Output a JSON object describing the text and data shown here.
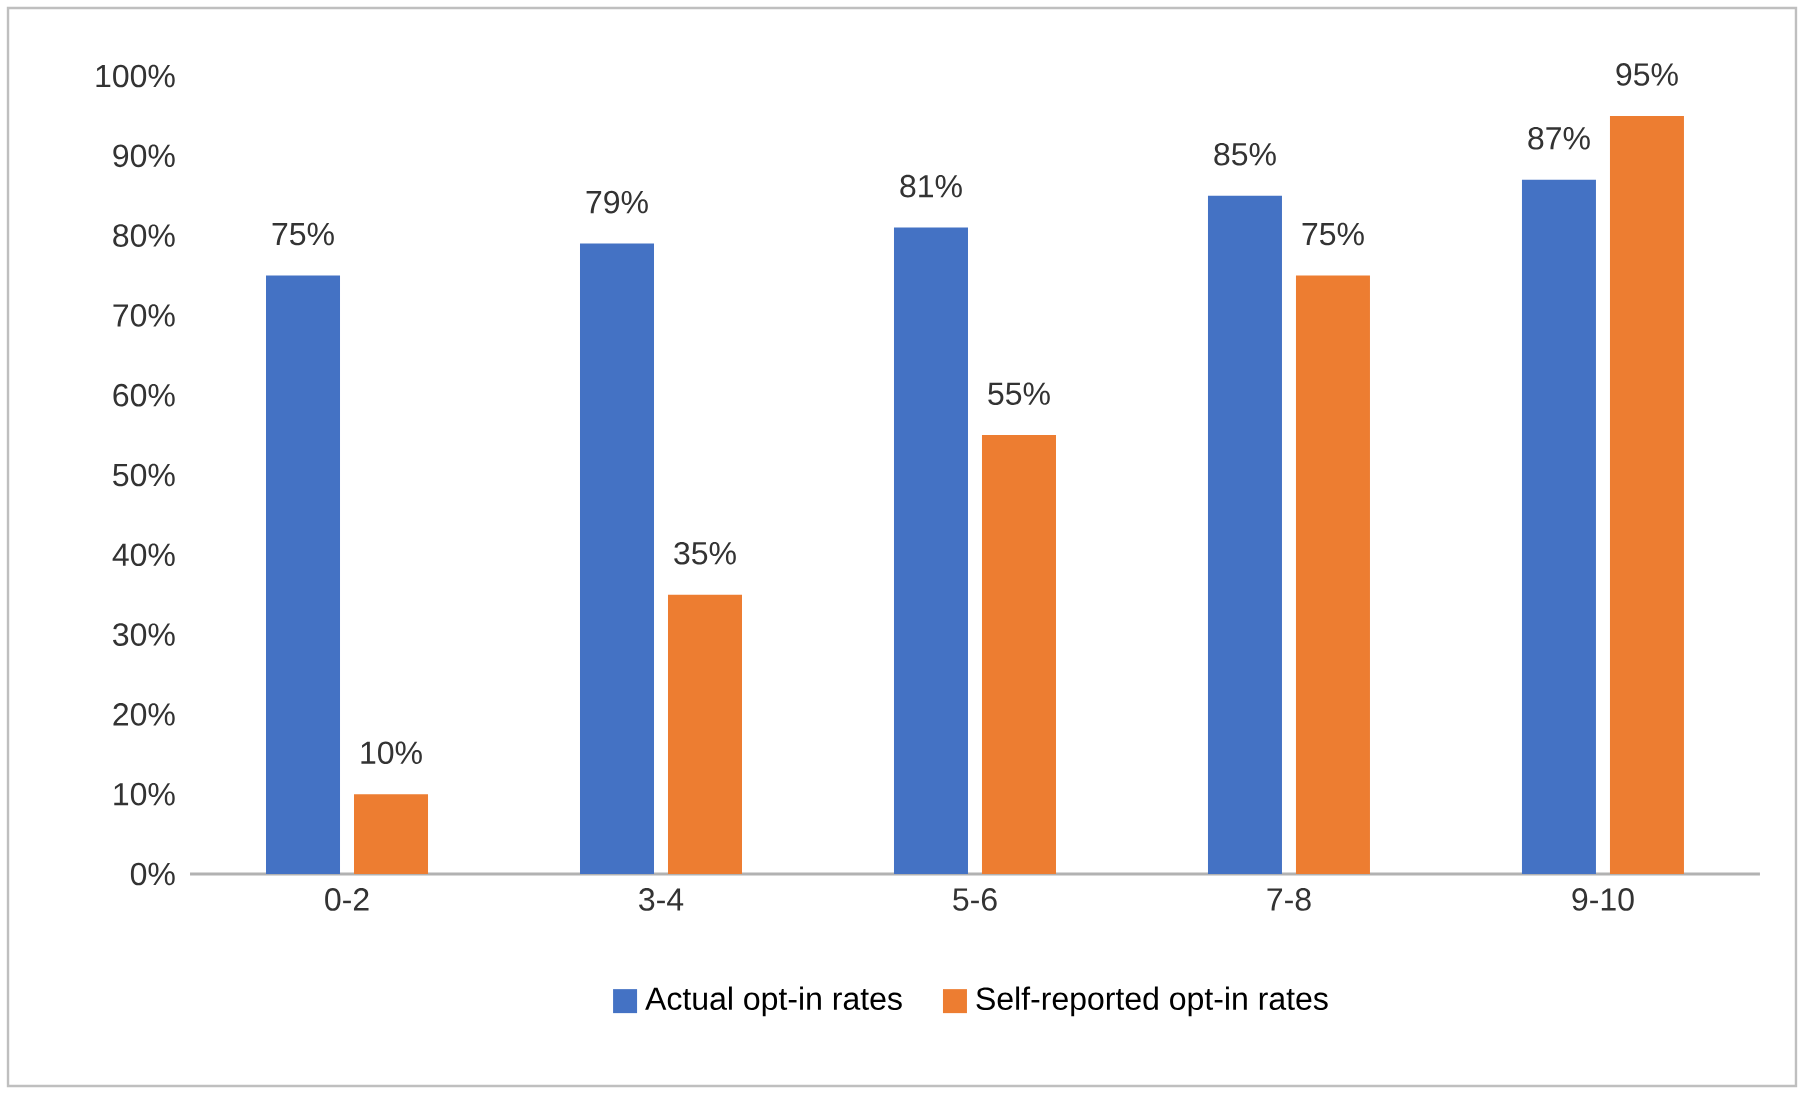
{
  "chart_data": {
    "type": "bar",
    "categories": [
      "0-2",
      "3-4",
      "5-6",
      "7-8",
      "9-10"
    ],
    "series": [
      {
        "name": "Actual opt-in rates",
        "color": "#4472c4",
        "values": [
          75,
          79,
          81,
          85,
          87
        ],
        "value_labels": [
          "75%",
          "79%",
          "81%",
          "85%",
          "87%"
        ]
      },
      {
        "name": "Self-reported opt-in rates",
        "color": "#ed7d31",
        "values": [
          10,
          35,
          55,
          75,
          95
        ],
        "value_labels": [
          "10%",
          "35%",
          "55%",
          "75%",
          "95%"
        ]
      }
    ],
    "ylim": [
      0,
      100
    ],
    "yticks": [
      {
        "value": 0,
        "label": "0%"
      },
      {
        "value": 10,
        "label": "10%"
      },
      {
        "value": 20,
        "label": "20%"
      },
      {
        "value": 30,
        "label": "30%"
      },
      {
        "value": 40,
        "label": "40%"
      },
      {
        "value": 50,
        "label": "50%"
      },
      {
        "value": 60,
        "label": "60%"
      },
      {
        "value": 70,
        "label": "70%"
      },
      {
        "value": 80,
        "label": "80%"
      },
      {
        "value": 90,
        "label": "90%"
      },
      {
        "value": 100,
        "label": "100%"
      }
    ],
    "legend": "bottom"
  }
}
